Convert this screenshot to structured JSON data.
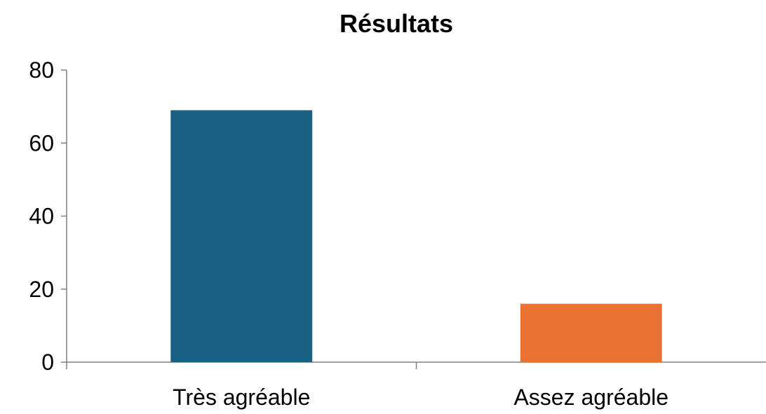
{
  "chart_data": {
    "type": "bar",
    "title": "Résultats",
    "categories": [
      "Très agréable",
      "Assez agréable"
    ],
    "values": [
      69,
      16
    ],
    "bar_colors": [
      "#1a6184",
      "#e97232"
    ],
    "ylim": [
      0,
      80
    ],
    "yticks": [
      "0",
      "20",
      "40",
      "60",
      "80"
    ],
    "xlabel": "",
    "ylabel": "",
    "grid": false,
    "legend": "none"
  }
}
